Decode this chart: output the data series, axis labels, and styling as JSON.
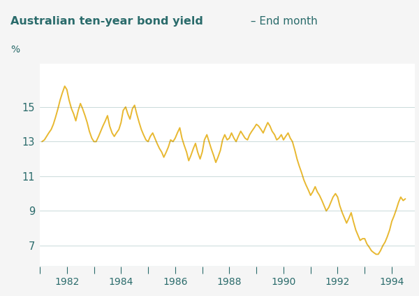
{
  "title_bold": "Australian ten-year bond yield",
  "title_light": " – End month",
  "ylabel": "%",
  "header_color": "#c8e8eb",
  "plot_bg_color": "#f5f5f5",
  "fig_bg_color": "#f5f5f5",
  "line_color": "#e8b830",
  "text_color": "#2a6b6b",
  "yticks": [
    7,
    9,
    11,
    13,
    15
  ],
  "ylim": [
    5.8,
    17.5
  ],
  "xlim_start": 1981.0,
  "xlim_end": 1994.85,
  "xtick_years": [
    1982,
    1984,
    1986,
    1988,
    1990,
    1992,
    1994
  ],
  "data": [
    [
      1981.08,
      13.0
    ],
    [
      1981.17,
      13.1
    ],
    [
      1981.25,
      13.3
    ],
    [
      1981.33,
      13.5
    ],
    [
      1981.42,
      13.7
    ],
    [
      1981.5,
      14.0
    ],
    [
      1981.58,
      14.4
    ],
    [
      1981.67,
      14.9
    ],
    [
      1981.75,
      15.4
    ],
    [
      1981.83,
      15.8
    ],
    [
      1981.92,
      16.2
    ],
    [
      1982.0,
      16.0
    ],
    [
      1982.08,
      15.4
    ],
    [
      1982.17,
      14.9
    ],
    [
      1982.25,
      14.6
    ],
    [
      1982.33,
      14.2
    ],
    [
      1982.42,
      14.8
    ],
    [
      1982.5,
      15.2
    ],
    [
      1982.58,
      14.9
    ],
    [
      1982.67,
      14.5
    ],
    [
      1982.75,
      14.1
    ],
    [
      1982.83,
      13.6
    ],
    [
      1982.92,
      13.2
    ],
    [
      1983.0,
      13.0
    ],
    [
      1983.08,
      13.0
    ],
    [
      1983.17,
      13.3
    ],
    [
      1983.25,
      13.6
    ],
    [
      1983.33,
      13.9
    ],
    [
      1983.42,
      14.2
    ],
    [
      1983.5,
      14.5
    ],
    [
      1983.58,
      13.9
    ],
    [
      1983.67,
      13.5
    ],
    [
      1983.75,
      13.3
    ],
    [
      1983.83,
      13.5
    ],
    [
      1983.92,
      13.7
    ],
    [
      1984.0,
      14.1
    ],
    [
      1984.08,
      14.8
    ],
    [
      1984.17,
      15.0
    ],
    [
      1984.25,
      14.6
    ],
    [
      1984.33,
      14.3
    ],
    [
      1984.42,
      14.9
    ],
    [
      1984.5,
      15.1
    ],
    [
      1984.58,
      14.6
    ],
    [
      1984.67,
      14.1
    ],
    [
      1984.75,
      13.7
    ],
    [
      1984.83,
      13.4
    ],
    [
      1984.92,
      13.1
    ],
    [
      1985.0,
      13.0
    ],
    [
      1985.08,
      13.3
    ],
    [
      1985.17,
      13.5
    ],
    [
      1985.25,
      13.2
    ],
    [
      1985.33,
      12.9
    ],
    [
      1985.42,
      12.6
    ],
    [
      1985.5,
      12.4
    ],
    [
      1985.58,
      12.1
    ],
    [
      1985.67,
      12.4
    ],
    [
      1985.75,
      12.7
    ],
    [
      1985.83,
      13.1
    ],
    [
      1985.92,
      13.0
    ],
    [
      1986.0,
      13.2
    ],
    [
      1986.08,
      13.5
    ],
    [
      1986.17,
      13.8
    ],
    [
      1986.25,
      13.2
    ],
    [
      1986.33,
      12.8
    ],
    [
      1986.42,
      12.4
    ],
    [
      1986.5,
      11.9
    ],
    [
      1986.58,
      12.2
    ],
    [
      1986.67,
      12.6
    ],
    [
      1986.75,
      12.9
    ],
    [
      1986.83,
      12.4
    ],
    [
      1986.92,
      12.0
    ],
    [
      1987.0,
      12.4
    ],
    [
      1987.08,
      13.1
    ],
    [
      1987.17,
      13.4
    ],
    [
      1987.25,
      13.0
    ],
    [
      1987.33,
      12.6
    ],
    [
      1987.42,
      12.2
    ],
    [
      1987.5,
      11.8
    ],
    [
      1987.58,
      12.1
    ],
    [
      1987.67,
      12.5
    ],
    [
      1987.75,
      13.1
    ],
    [
      1987.83,
      13.4
    ],
    [
      1987.92,
      13.1
    ],
    [
      1988.0,
      13.2
    ],
    [
      1988.08,
      13.5
    ],
    [
      1988.17,
      13.2
    ],
    [
      1988.25,
      13.0
    ],
    [
      1988.33,
      13.3
    ],
    [
      1988.42,
      13.6
    ],
    [
      1988.5,
      13.4
    ],
    [
      1988.58,
      13.2
    ],
    [
      1988.67,
      13.1
    ],
    [
      1988.75,
      13.4
    ],
    [
      1988.83,
      13.6
    ],
    [
      1988.92,
      13.8
    ],
    [
      1989.0,
      14.0
    ],
    [
      1989.08,
      13.9
    ],
    [
      1989.17,
      13.7
    ],
    [
      1989.25,
      13.5
    ],
    [
      1989.33,
      13.8
    ],
    [
      1989.42,
      14.1
    ],
    [
      1989.5,
      13.9
    ],
    [
      1989.58,
      13.6
    ],
    [
      1989.67,
      13.4
    ],
    [
      1989.75,
      13.1
    ],
    [
      1989.83,
      13.2
    ],
    [
      1989.92,
      13.4
    ],
    [
      1990.0,
      13.1
    ],
    [
      1990.08,
      13.3
    ],
    [
      1990.17,
      13.5
    ],
    [
      1990.25,
      13.2
    ],
    [
      1990.33,
      13.0
    ],
    [
      1990.42,
      12.5
    ],
    [
      1990.5,
      12.0
    ],
    [
      1990.58,
      11.6
    ],
    [
      1990.67,
      11.2
    ],
    [
      1990.75,
      10.8
    ],
    [
      1990.83,
      10.5
    ],
    [
      1990.92,
      10.2
    ],
    [
      1991.0,
      9.9
    ],
    [
      1991.08,
      10.1
    ],
    [
      1991.17,
      10.4
    ],
    [
      1991.25,
      10.1
    ],
    [
      1991.33,
      9.9
    ],
    [
      1991.42,
      9.6
    ],
    [
      1991.5,
      9.3
    ],
    [
      1991.58,
      9.0
    ],
    [
      1991.67,
      9.2
    ],
    [
      1991.75,
      9.5
    ],
    [
      1991.83,
      9.8
    ],
    [
      1991.92,
      10.0
    ],
    [
      1992.0,
      9.8
    ],
    [
      1992.08,
      9.3
    ],
    [
      1992.17,
      8.9
    ],
    [
      1992.25,
      8.6
    ],
    [
      1992.33,
      8.3
    ],
    [
      1992.42,
      8.6
    ],
    [
      1992.5,
      8.9
    ],
    [
      1992.58,
      8.4
    ],
    [
      1992.67,
      7.9
    ],
    [
      1992.75,
      7.6
    ],
    [
      1992.83,
      7.3
    ],
    [
      1992.92,
      7.4
    ],
    [
      1993.0,
      7.4
    ],
    [
      1993.08,
      7.1
    ],
    [
      1993.17,
      6.9
    ],
    [
      1993.25,
      6.7
    ],
    [
      1993.33,
      6.6
    ],
    [
      1993.42,
      6.5
    ],
    [
      1993.5,
      6.5
    ],
    [
      1993.58,
      6.7
    ],
    [
      1993.67,
      7.0
    ],
    [
      1993.75,
      7.2
    ],
    [
      1993.83,
      7.5
    ],
    [
      1993.92,
      7.9
    ],
    [
      1994.0,
      8.4
    ],
    [
      1994.08,
      8.7
    ],
    [
      1994.17,
      9.1
    ],
    [
      1994.25,
      9.5
    ],
    [
      1994.33,
      9.8
    ],
    [
      1994.42,
      9.6
    ],
    [
      1994.5,
      9.7
    ]
  ]
}
